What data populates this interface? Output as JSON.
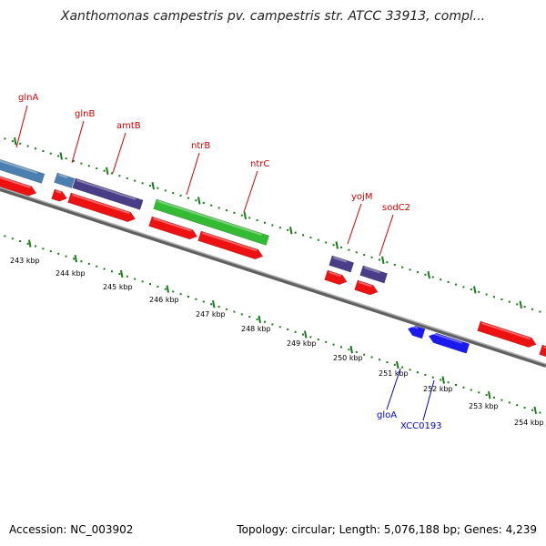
{
  "title": "Xanthomonas campestris pv. campestris str. ATCC 33913, compl...",
  "footer": {
    "accession": "Accession: NC_003902",
    "summary": "Topology: circular; Length: 5,076,188 bp; Genes: 4,239"
  },
  "colors": {
    "forward_tick": "#1a7a1a",
    "reverse_tick": "#1a7a1a",
    "backbone": "#808080",
    "label_red": "#cc0000",
    "label_blue": "#0000cc",
    "feature_red": "#ee1111",
    "feature_steelblue": "#4a7fb0",
    "feature_purple": "#4a3d88",
    "feature_green": "#33bb33",
    "feature_blue": "#1a1aee"
  },
  "kbp_labels": [
    "243 kbp",
    "244 kbp",
    "245 kbp",
    "246 kbp",
    "247 kbp",
    "248 kbp",
    "249 kbp",
    "250 kbp",
    "251 kbp",
    "252 kbp",
    "253 kbp",
    "254 kbp"
  ],
  "gene_labels_top": [
    "glnA",
    "glnB",
    "amtB",
    "ntrB",
    "ntrC",
    "yojM",
    "sodC2"
  ],
  "gene_labels_bottom": [
    "gloA",
    "XCC0193"
  ]
}
